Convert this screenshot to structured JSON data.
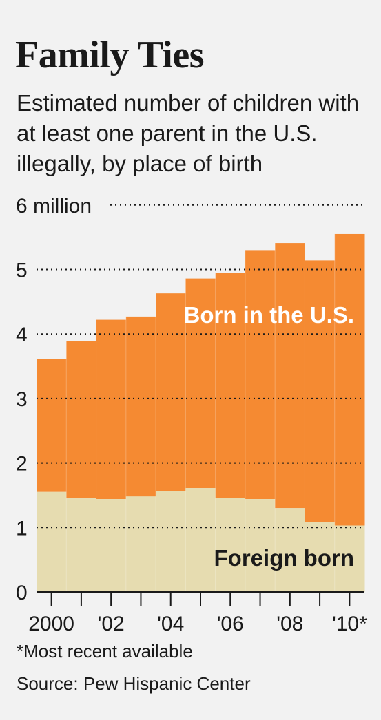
{
  "header": {
    "title": "Family Ties",
    "subtitle": "Estimated number of children with at least one parent in the U.S. illegally, by place of birth"
  },
  "footer": {
    "footnote": "*Most recent available",
    "source": "Source: Pew Hispanic Center"
  },
  "colors": {
    "born_in_us": "#f58a32",
    "foreign_born": "#e6dcb0",
    "background": "#f2f2f2"
  },
  "chart_data": {
    "type": "area",
    "x": [
      "2000",
      "2001",
      "2002",
      "2003",
      "2004",
      "2005",
      "2006",
      "2007",
      "2008",
      "2009",
      "2010"
    ],
    "x_tick_labels": [
      "2000",
      "",
      "'02",
      "",
      "'04",
      "",
      "'06",
      "",
      "'08",
      "",
      "'10*"
    ],
    "stacked": true,
    "series": [
      {
        "name": "Foreign born",
        "values": [
          1.55,
          1.45,
          1.44,
          1.48,
          1.56,
          1.61,
          1.46,
          1.44,
          1.3,
          1.08,
          1.03
        ]
      },
      {
        "name": "Born in the U.S.",
        "values": [
          2.06,
          2.44,
          2.78,
          2.79,
          3.07,
          3.25,
          3.49,
          3.86,
          4.11,
          4.06,
          4.52
        ]
      }
    ],
    "totals": [
      3.61,
      3.89,
      4.22,
      4.27,
      4.63,
      4.86,
      4.95,
      5.3,
      5.41,
      5.14,
      5.55
    ],
    "y_ticks": [
      "0",
      "1",
      "2",
      "3",
      "4",
      "5",
      "6 million"
    ],
    "ylim": [
      0,
      6
    ],
    "grid": true
  }
}
